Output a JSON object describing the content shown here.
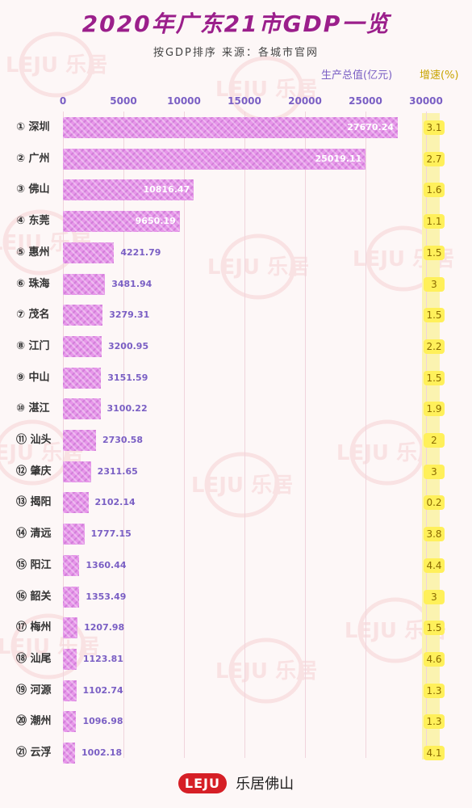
{
  "title": "2020年广东21市GDP一览",
  "subtitle": "按GDP排序   来源：各城市官网",
  "legend": {
    "gdp_label": "生产总值(亿元)",
    "growth_label": "增速(%)"
  },
  "colors": {
    "title": "#9b1f8b",
    "bar": "#e796ea",
    "value_text": "#7a5fc4",
    "growth_bg": "#fff05a"
  },
  "watermark": "LEJU 乐居",
  "footer": {
    "logo": "LEJU",
    "text": "乐居佛山"
  },
  "chart_data": {
    "type": "bar",
    "orientation": "horizontal",
    "xlim": [
      0,
      30000
    ],
    "ticks": [
      0,
      5000,
      10000,
      15000,
      20000,
      25000,
      30000
    ],
    "tick_labels": [
      "0",
      "5000",
      "10000",
      "15000",
      "20000",
      "25000",
      "30000"
    ],
    "categories": [
      "① 深圳",
      "② 广州",
      "③ 佛山",
      "④ 东莞",
      "⑤ 惠州",
      "⑥ 珠海",
      "⑦ 茂名",
      "⑧ 江门",
      "⑨ 中山",
      "⑩ 湛江",
      "⑪ 汕头",
      "⑫ 肇庆",
      "⑬ 揭阳",
      "⑭ 清远",
      "⑮ 阳江",
      "⑯ 韶关",
      "⑰ 梅州",
      "⑱ 汕尾",
      "⑲ 河源",
      "⑳ 潮州",
      "㉑ 云浮"
    ],
    "values": [
      27670.24,
      25019.11,
      10816.47,
      9650.19,
      4221.79,
      3481.94,
      3279.31,
      3200.95,
      3151.59,
      3100.22,
      2730.58,
      2311.65,
      2102.14,
      1777.15,
      1360.44,
      1353.49,
      1207.98,
      1123.81,
      1102.74,
      1096.98,
      1002.18
    ],
    "value_labels": [
      "27670.24",
      "25019.11",
      "10816.47",
      "9650.19",
      "4221.79",
      "3481.94",
      "3279.31",
      "3200.95",
      "3151.59",
      "3100.22",
      "2730.58",
      "2311.65",
      "2102.14",
      "1777.15",
      "1360.44",
      "1353.49",
      "1207.98",
      "1123.81",
      "1102.74",
      "1096.98",
      "1002.18"
    ],
    "growth": [
      "3.1",
      "2.7",
      "1.6",
      "1.1",
      "1.5",
      "3",
      "1.5",
      "2.2",
      "1.5",
      "1.9",
      "2",
      "3",
      "0.2",
      "3.8",
      "4.4",
      "3",
      "1.5",
      "4.6",
      "1.3",
      "1.3",
      "4.1"
    ]
  }
}
